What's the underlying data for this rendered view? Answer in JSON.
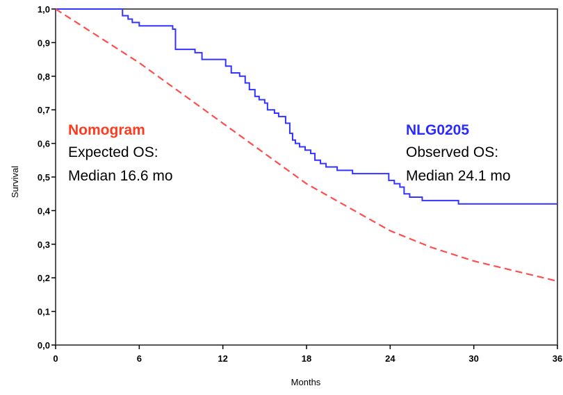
{
  "chart_data": {
    "type": "line",
    "title": "",
    "xlabel": "Months",
    "ylabel": "Survival",
    "xlim": [
      0,
      36
    ],
    "ylim": [
      0,
      1.0
    ],
    "x_ticks": [
      "0",
      "6",
      "12",
      "18",
      "24",
      "30",
      "36"
    ],
    "y_ticks": [
      "0,0",
      "0,1",
      "0,2",
      "0,3",
      "0,4",
      "0,5",
      "0,6",
      "0,7",
      "0,8",
      "0,9",
      "1,0"
    ],
    "grid": false,
    "colors": {
      "observed": "#3333ff",
      "expected": "#ff4d4d"
    },
    "series": [
      {
        "style": "step",
        "x": [
          0,
          4.8,
          5.2,
          5.5,
          6.0,
          8.4,
          8.6,
          10.0,
          10.5,
          12.2,
          12.6,
          13.2,
          13.6,
          13.9,
          14.3,
          14.6,
          15.0,
          15.2,
          15.7,
          16.0,
          16.5,
          16.8,
          17.0,
          17.2,
          17.5,
          17.9,
          18.3,
          18.6,
          19.0,
          19.4,
          20.2,
          21.3,
          23.9,
          24.3,
          24.7,
          25.0,
          25.4,
          26.3,
          28.9,
          36.0
        ],
        "y": [
          1.0,
          0.98,
          0.97,
          0.96,
          0.95,
          0.94,
          0.88,
          0.87,
          0.85,
          0.83,
          0.81,
          0.8,
          0.78,
          0.76,
          0.74,
          0.73,
          0.72,
          0.7,
          0.69,
          0.68,
          0.66,
          0.63,
          0.61,
          0.6,
          0.59,
          0.58,
          0.57,
          0.55,
          0.54,
          0.53,
          0.52,
          0.51,
          0.49,
          0.48,
          0.47,
          0.45,
          0.44,
          0.43,
          0.42,
          0.42
        ]
      },
      {
        "style": "dashed",
        "x": [
          0,
          3,
          6,
          9,
          12,
          15,
          18,
          21,
          24,
          27,
          30,
          33,
          36
        ],
        "y": [
          1.0,
          0.92,
          0.84,
          0.75,
          0.66,
          0.57,
          0.48,
          0.41,
          0.34,
          0.29,
          0.25,
          0.22,
          0.19
        ]
      }
    ],
    "annotations": [
      {
        "head": "Nomogram",
        "line1": "Expected OS:",
        "line2": "Median  16.6 mo"
      },
      {
        "head": "NLG0205",
        "line1": "Observed OS:",
        "line2": "Median  24.1 mo"
      }
    ]
  }
}
